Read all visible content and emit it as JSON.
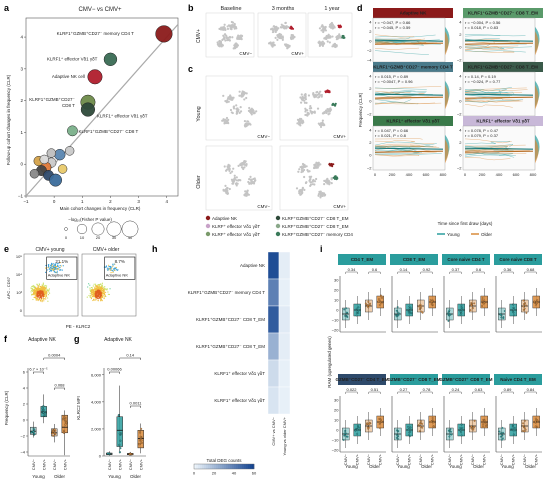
{
  "panel_letters": [
    "a",
    "b",
    "c",
    "d",
    "e",
    "f",
    "g",
    "h",
    "i"
  ],
  "a": {
    "title": "CMV− vs CMV+",
    "xlabel": "Main cohort changes in frequency (CLR)",
    "ylabel": "Follow-up cohort changes in frequency (CLR)",
    "size_legend_title": "−log₁₀(Fisher P value)",
    "size_legend_values": [
      "0",
      "10",
      "20",
      "30",
      "40"
    ],
    "labels": [
      "KLRF1⁺GZMB⁺CD27⁻ memory CD4 T",
      "KLRF1⁺ effector Vδ1 γδT",
      "Adaptive NK cell",
      "KLRF1⁺GZMB⁺CD27⁻",
      "CD8 T",
      "KLRF1⁺ effector Vδ1 γδT",
      "KLRF1⁺GZMB⁺CD27⁻ CD8 T"
    ],
    "chart_data": {
      "type": "scatter",
      "title": "CMV− vs CMV+",
      "xlabel": "Main cohort changes in frequency (CLR)",
      "ylabel": "Follow-up cohort changes in frequency (CLR)",
      "xlim": [
        -1,
        4.4
      ],
      "ylim": [
        -1,
        4.6
      ],
      "x_ticks": [
        "−1",
        "0",
        "1",
        "2",
        "3",
        "4"
      ],
      "y_ticks": [
        "−1",
        "0",
        "1",
        "2",
        "3",
        "4"
      ],
      "points": [
        {
          "x": 3.9,
          "y": 4.1,
          "size": 42,
          "color": "#8b1a1a"
        },
        {
          "x": 2.0,
          "y": 3.3,
          "size": 22,
          "color": "#3a6b54"
        },
        {
          "x": 1.45,
          "y": 2.75,
          "size": 30,
          "color": "#b01e2c"
        },
        {
          "x": 1.2,
          "y": 1.95,
          "size": 30,
          "color": "#6e8b4a"
        },
        {
          "x": 1.2,
          "y": 1.72,
          "size": 26,
          "color": "#2e4a3a"
        },
        {
          "x": 0.65,
          "y": 1.05,
          "size": 12,
          "color": "#7ab08a"
        },
        {
          "x": 0.55,
          "y": 0.42,
          "size": 8,
          "color": "#c9c9c9"
        },
        {
          "x": 0.2,
          "y": 0.3,
          "size": 14,
          "color": "#5a86b0"
        },
        {
          "x": -0.1,
          "y": 0.05,
          "size": 10,
          "color": "#c9c9c9"
        },
        {
          "x": -0.3,
          "y": -0.1,
          "size": 14,
          "color": "#e07a3a"
        },
        {
          "x": -0.45,
          "y": -0.2,
          "size": 12,
          "color": "#444444"
        },
        {
          "x": -0.2,
          "y": -0.35,
          "size": 12,
          "color": "#2e4a6b"
        },
        {
          "x": 0.05,
          "y": -0.5,
          "size": 20,
          "color": "#3a6b9b"
        },
        {
          "x": -0.55,
          "y": 0.1,
          "size": 10,
          "color": "#d4a24a"
        },
        {
          "x": -0.7,
          "y": -0.3,
          "size": 8,
          "color": "#888888"
        },
        {
          "x": -0.1,
          "y": 0.35,
          "size": 8,
          "color": "#bfbfbf"
        },
        {
          "x": 0.3,
          "y": -0.15,
          "size": 8,
          "color": "#e8c96a"
        },
        {
          "x": -0.35,
          "y": 0.15,
          "size": 8,
          "color": "#d9d9d9"
        }
      ]
    }
  },
  "b": {
    "col_titles": [
      "Baseline",
      "3 months",
      "1 year"
    ],
    "row_label": "CMV+",
    "cell_tags": [
      "CMV−",
      "CMV+"
    ]
  },
  "c": {
    "row_labels": [
      "Young",
      "Older"
    ],
    "cell_tags": [
      "CMV−",
      "CMV+",
      "CMV−",
      "CMV+"
    ],
    "legend": [
      {
        "label": "Adaptive NK",
        "color": "#8b1a1a"
      },
      {
        "label": "KLRF⁺ effector Vδ1 γδT",
        "color": "#c8a2c8"
      },
      {
        "label": "KLRF⁺ effector Vδ1 γδT",
        "color": "#7a9a6a"
      },
      {
        "label": "KLRF⁺GZMB⁺CD27⁻ CD8 T_EM",
        "color": "#2e4a3a"
      },
      {
        "label": "KLRF⁺GZMB⁺CD27⁻ CD8 T_EM",
        "color": "#8aa88a"
      },
      {
        "label": "KLRF⁺GZMB⁺CD27⁻ memory CD4",
        "color": "#3a7a5a"
      }
    ]
  },
  "d": {
    "ylabel": "Frequency (CLR)",
    "xlabel": "Time since first draw (days)",
    "x_ticks": [
      "0",
      "200",
      "400",
      "600",
      "800"
    ],
    "legend": [
      {
        "label": "Young",
        "color": "#2a9d9d"
      },
      {
        "label": "Older",
        "color": "#d98a3a"
      }
    ],
    "panels": [
      {
        "title": "Adaptive NK",
        "color": "#8b1a1a",
        "stats": [
          "r = −0.047, P = 0.66",
          "r = −0.045, P = 0.59"
        ],
        "y_ticks": [
          "4",
          "2",
          "0",
          "−2",
          "−4"
        ]
      },
      {
        "title": "KLRF1⁺GZMB⁺CD27⁻ CD8 T_EM",
        "color": "#5a9a6a",
        "stats": [
          "r = −0.004, P = 0.56",
          "r = 0.018, P = 0.83"
        ],
        "y_ticks": [
          "4",
          "2",
          "0",
          "−2"
        ]
      },
      {
        "title": "KLRF1⁺GZMB⁺CD27⁻ memory CD4 T",
        "color": "#4a7a8a",
        "stats": [
          "r = 0.015, P = 0.89",
          "r = −0.0047, P = 0.96"
        ],
        "y_ticks": [
          "4",
          "2",
          "0",
          "−2"
        ]
      },
      {
        "title": "KLRF1⁺GZMB⁺CD27⁻ CD8 T_EM",
        "color": "#3a5a4a",
        "stats": [
          "r = 0.14, P = 0.19",
          "r = −0.024, P = 0.77"
        ],
        "y_ticks": [
          "4",
          "2",
          "0",
          "−2"
        ]
      },
      {
        "title": "KLRF1⁺ effector Vδ1 γδT",
        "color": "#3a7a4a",
        "stats": [
          "r = 0.047, P = 0.66",
          "r = 0.021, P = 0.8"
        ],
        "y_ticks": [
          "4",
          "2",
          "0",
          "−2"
        ]
      },
      {
        "title": "KLRF1⁺ effector Vδ1 γδT",
        "color": "#c8b8d8",
        "stats": [
          "r = 0.078, P = 0.47",
          "r = 0.079, P = 0.37"
        ],
        "y_ticks": [
          "4",
          "2",
          "0",
          "−2"
        ]
      }
    ]
  },
  "e": {
    "titles": [
      "CMV+ young",
      "CMV+ older"
    ],
    "percents": [
      "21.1%",
      "8.7%"
    ],
    "gate_label": "Adaptive NK",
    "xlabel": "PE - KLRC2",
    "ylabel": "APC - CD57",
    "y_ticks": [
      "10⁵",
      "10⁴",
      "10³",
      "0"
    ]
  },
  "f": {
    "title": "Adaptive NK",
    "ylabel": "Frequency (CLR)",
    "y_ticks": [
      "6",
      "4",
      "2",
      "0",
      "−2",
      "−4"
    ],
    "pvals": [
      "6.7 × 10⁻⁵",
      "0.0004",
      "0.068"
    ],
    "groups": [
      "CMV−",
      "CMV+",
      "CMV−",
      "CMV+"
    ],
    "group_labels": [
      "Young",
      "Older"
    ],
    "chart_data": {
      "type": "box",
      "categories": [
        "Young CMV−",
        "Young CMV+",
        "Older CMV−",
        "Older CMV+"
      ],
      "values": [
        {
          "median": -1.4,
          "q1": -1.8,
          "q3": -0.9,
          "min": -2.2,
          "max": -0.2
        },
        {
          "median": 1.0,
          "q1": 0.4,
          "q3": 1.7,
          "min": -0.4,
          "max": 3.2
        },
        {
          "median": -1.6,
          "q1": -2.0,
          "q3": -1.1,
          "min": -2.8,
          "max": -0.5
        },
        {
          "median": -0.9,
          "q1": -1.6,
          "q3": 0.6,
          "min": -4.4,
          "max": 1.2
        }
      ],
      "ylim": [
        -4.5,
        6.5
      ]
    }
  },
  "g": {
    "title": "Adaptive NK",
    "ylabel": "KLRC2 MFI",
    "y_ticks": [
      "6,000",
      "4,000",
      "2,000",
      "0"
    ],
    "pvals": [
      "0.00066",
      "0.14",
      "0.0011"
    ],
    "groups": [
      "CMV−",
      "CMV+",
      "CMV−",
      "CMV+"
    ],
    "group_labels": [
      "Young",
      "Older"
    ],
    "chart_data": {
      "type": "box",
      "categories": [
        "Young CMV−",
        "Young CMV+",
        "Older CMV−",
        "Older CMV+"
      ],
      "values": [
        {
          "median": 150,
          "q1": 100,
          "q3": 220,
          "min": 50,
          "max": 350
        },
        {
          "median": 1900,
          "q1": 700,
          "q3": 2900,
          "min": 200,
          "max": 5200
        },
        {
          "median": 140,
          "q1": 90,
          "q3": 200,
          "min": 50,
          "max": 300
        },
        {
          "median": 1300,
          "q1": 600,
          "q3": 1900,
          "min": 200,
          "max": 2400
        }
      ],
      "ylim": [
        0,
        6500
      ]
    }
  },
  "h": {
    "rows": [
      "Adaptive NK",
      "KLRF1⁺GZMB⁺CD27⁻ memory CD4 T",
      "KLRF1⁺GZMB⁺CD27⁻ CD8 T_EM",
      "KLRF1⁺GZMB⁺CD27⁻ CD8 T_EM",
      "KLRF1⁺ effector Vδ1 γδT",
      "KLRF1⁺ effector Vδ1 γδT"
    ],
    "cols": [
      "CMV+ vs CMV−",
      "Young vs older CMV+"
    ],
    "colorbar_title": "Total DEG counts",
    "colorbar_ticks": [
      "0",
      "20",
      "40",
      "60"
    ],
    "chart_data": {
      "type": "heatmap",
      "rows": [
        "Adaptive NK",
        "KLRF1⁺GZMB⁺CD27⁻ memory CD4 T",
        "KLRF1⁺GZMB⁺CD27⁻ CD8 T_EM",
        "KLRF1⁺GZMB⁺CD27⁻ CD8 T_EM",
        "KLRF1⁺ effector Vδ1 γδT",
        "KLRF1⁺ effector Vδ1 γδT"
      ],
      "cols": [
        "CMV+ vs CMV−",
        "Young vs older CMV+"
      ],
      "values": [
        [
          55,
          2
        ],
        [
          38,
          1
        ],
        [
          50,
          3
        ],
        [
          22,
          2
        ],
        [
          8,
          1
        ],
        [
          5,
          1
        ]
      ],
      "range": [
        0,
        60
      ]
    }
  },
  "i": {
    "ylabel": "RAM (upregulated genes)",
    "y_ticks": [
      "30",
      "20",
      "10",
      "0",
      "−10",
      "−20"
    ],
    "group_labels": [
      "Young",
      "Older"
    ],
    "groups": [
      "CMV−",
      "CMV+",
      "CMV−",
      "CMV+"
    ],
    "panels": [
      {
        "title": "CD4 T_EM",
        "color": "#2a9d9d",
        "pvals": [
          "0.34",
          "0.6"
        ]
      },
      {
        "title": "CD8 T_EM",
        "color": "#2a9d9d",
        "pvals": [
          "0.14",
          "0.92"
        ]
      },
      {
        "title": "Core naive CD4 T",
        "color": "#2a9d9d",
        "pvals": [
          "0.37",
          "0.6"
        ]
      },
      {
        "title": "Core naive CD8 T",
        "color": "#2a9d9d",
        "pvals": [
          "0.36",
          "0.68"
        ]
      },
      {
        "title": "GZMB⁺CD27⁻ CD4 T_EM",
        "color": "#2e4a6b",
        "pvals": [
          "0.022",
          "0.51"
        ]
      },
      {
        "title": "GZMB⁺CD27⁻ CD8 T_EM",
        "color": "#2a9d9d",
        "pvals": [
          "0.27",
          "0.78"
        ]
      },
      {
        "title": "GZMB⁺CD27⁺ CD8 T_EM",
        "color": "#2a9d9d",
        "pvals": [
          "0.24",
          "0.63"
        ]
      },
      {
        "title": "Naive CD4 T_EM",
        "color": "#2a9d9d",
        "pvals": [
          "0.89",
          "0.84"
        ]
      }
    ]
  },
  "colors": {
    "young": "#2a9d9d",
    "older": "#d98a3a",
    "cmv_neg": "#4a8ab5",
    "cmv_pos": "#d4603a"
  }
}
